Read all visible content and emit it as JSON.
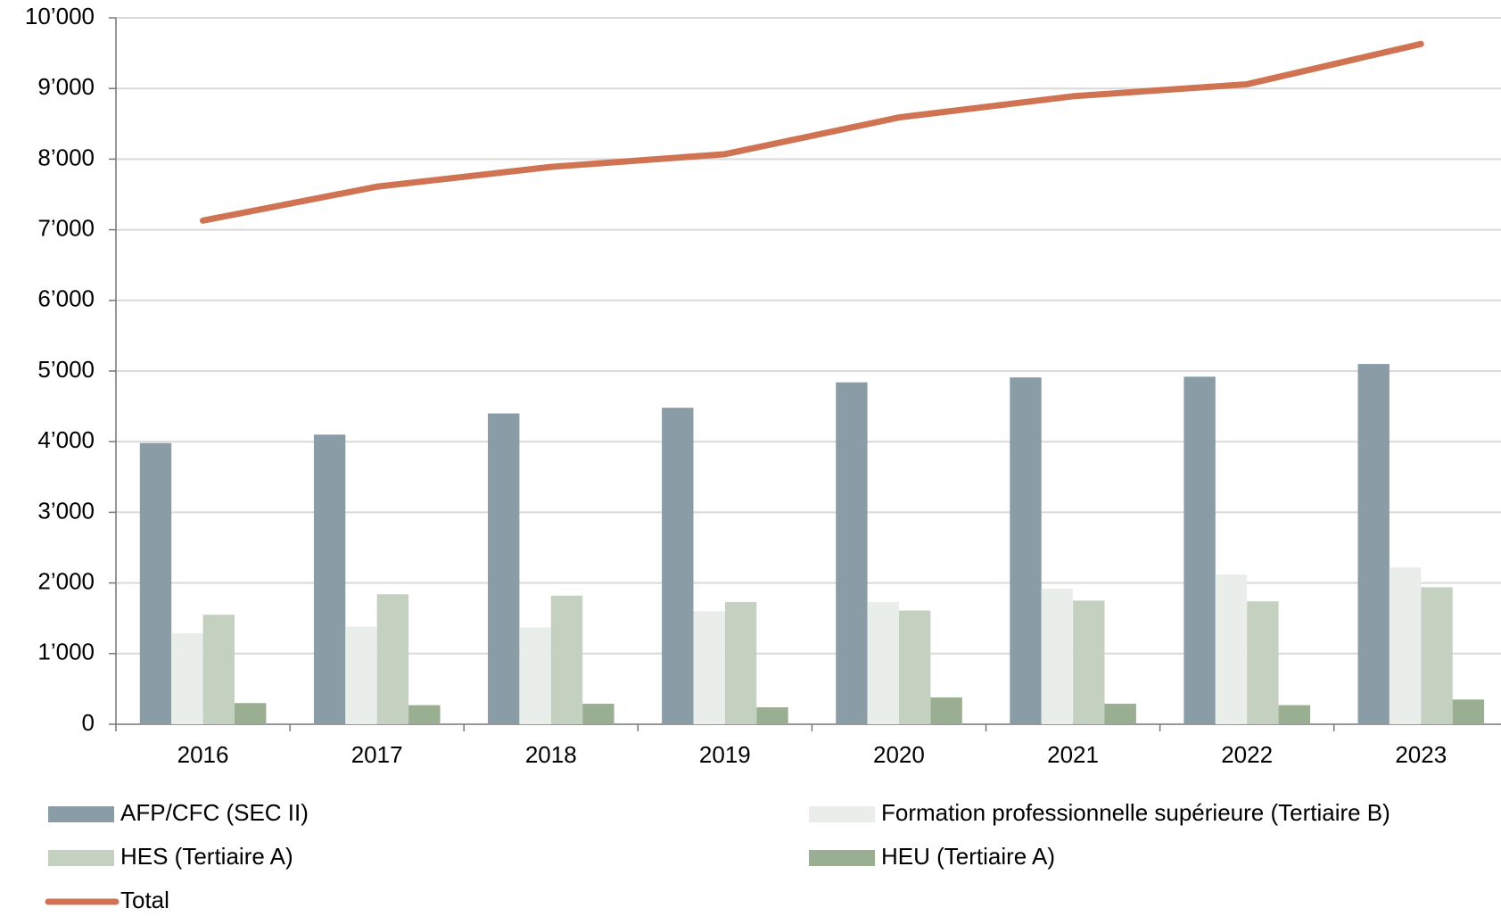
{
  "chart_data": {
    "type": "bar",
    "categories": [
      "2016",
      "2017",
      "2018",
      "2019",
      "2020",
      "2021",
      "2022",
      "2023"
    ],
    "series": [
      {
        "name": "AFP/CFC (SEC II)",
        "color": "#8a9da7",
        "values": [
          3980,
          4100,
          4400,
          4480,
          4840,
          4910,
          4920,
          5100
        ]
      },
      {
        "name": "Formation professionnelle supérieure (Tertiaire B)",
        "color": "#eaeeea",
        "values": [
          1290,
          1380,
          1370,
          1600,
          1730,
          1920,
          2120,
          2220
        ]
      },
      {
        "name": "HES (Tertiaire A)",
        "color": "#c5d1c0",
        "values": [
          1550,
          1840,
          1820,
          1730,
          1610,
          1750,
          1740,
          1940
        ]
      },
      {
        "name": "HEU (Tertiaire A)",
        "color": "#9aaf92",
        "values": [
          300,
          270,
          290,
          240,
          380,
          290,
          270,
          350
        ]
      },
      {
        "name": "Total",
        "type": "line",
        "color": "#d07352",
        "values": [
          7130,
          7610,
          7890,
          8070,
          8590,
          8890,
          9060,
          9630
        ]
      }
    ],
    "ylim": [
      0,
      10000
    ],
    "yticks": [
      0,
      {
        "value": 1000,
        "label": "1’000"
      },
      {
        "value": 2000,
        "label": "2’000"
      },
      {
        "value": 3000,
        "label": "3’000"
      },
      {
        "value": 4000,
        "label": "4’000"
      },
      {
        "value": 5000,
        "label": "5’000"
      },
      {
        "value": 6000,
        "label": "6’000"
      },
      {
        "value": 7000,
        "label": "7’000"
      },
      {
        "value": 8000,
        "label": "8’000"
      },
      {
        "value": 9000,
        "label": "9’000"
      },
      {
        "value": 10000,
        "label": "10’000"
      }
    ],
    "grid": true,
    "legend": "bottom"
  }
}
